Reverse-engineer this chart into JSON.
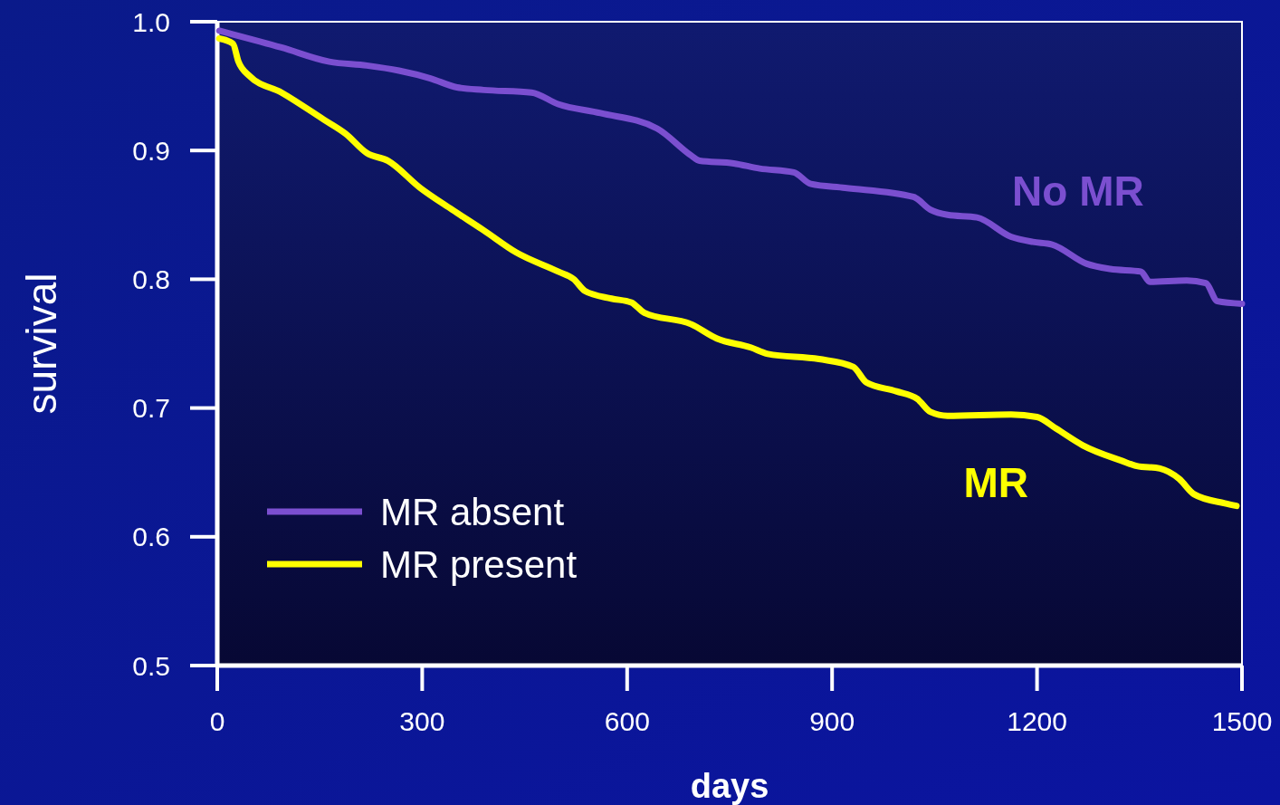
{
  "chart_data": {
    "type": "line",
    "xlabel": "days",
    "ylabel": "survival",
    "xlim": [
      0,
      1500
    ],
    "ylim": [
      0.5,
      1.0
    ],
    "xticks": [
      0,
      300,
      600,
      900,
      1200,
      1500
    ],
    "yticks": [
      {
        "value": 0.5,
        "label": "0.5"
      },
      {
        "value": 0.6,
        "label": "0.6"
      },
      {
        "value": 0.7,
        "label": "0.7"
      },
      {
        "value": 0.8,
        "label": "0.8"
      },
      {
        "value": 0.9,
        "label": "0.9"
      },
      {
        "value": 1.0,
        "label": "1.0"
      }
    ],
    "grid": false,
    "legend": "bottom left",
    "marker": "none",
    "line_style": "solid",
    "series": [
      {
        "name": "MR absent",
        "color": "#7b4fd0",
        "x": [
          3,
          94,
          164,
          219,
          266,
          312,
          351,
          390,
          460,
          499,
          561,
          644,
          694,
          706,
          756,
          794,
          844,
          869,
          919,
          1019,
          1044,
          1069,
          1112,
          1162,
          1194,
          1222,
          1273,
          1307,
          1352,
          1365,
          1419,
          1447,
          1464,
          1500
        ],
        "values": [
          0.993,
          0.98,
          0.969,
          0.966,
          0.962,
          0.956,
          0.949,
          0.947,
          0.945,
          0.936,
          0.929,
          0.917,
          0.896,
          0.892,
          0.89,
          0.886,
          0.883,
          0.874,
          0.871,
          0.864,
          0.854,
          0.85,
          0.848,
          0.833,
          0.829,
          0.827,
          0.812,
          0.808,
          0.806,
          0.798,
          0.799,
          0.797,
          0.783,
          0.781
        ]
      },
      {
        "name": "MR present",
        "color": "#ffff00",
        "x": [
          3,
          23,
          31,
          47,
          94,
          156,
          188,
          219,
          250,
          297,
          344,
          390,
          437,
          499,
          522,
          538,
          577,
          606,
          625,
          694,
          731,
          781,
          806,
          881,
          931,
          950,
          994,
          1025,
          1044,
          1069,
          1162,
          1200,
          1228,
          1267,
          1324,
          1346,
          1380,
          1408,
          1430,
          1475,
          1492
        ],
        "values": [
          0.987,
          0.983,
          0.969,
          0.958,
          0.945,
          0.924,
          0.913,
          0.898,
          0.892,
          0.871,
          0.854,
          0.838,
          0.821,
          0.806,
          0.8,
          0.791,
          0.785,
          0.782,
          0.774,
          0.765,
          0.754,
          0.747,
          0.742,
          0.738,
          0.732,
          0.72,
          0.713,
          0.707,
          0.697,
          0.694,
          0.695,
          0.693,
          0.684,
          0.671,
          0.659,
          0.655,
          0.653,
          0.645,
          0.633,
          0.626,
          0.624
        ]
      }
    ],
    "annotations": [
      "No MR",
      "MR"
    ]
  }
}
